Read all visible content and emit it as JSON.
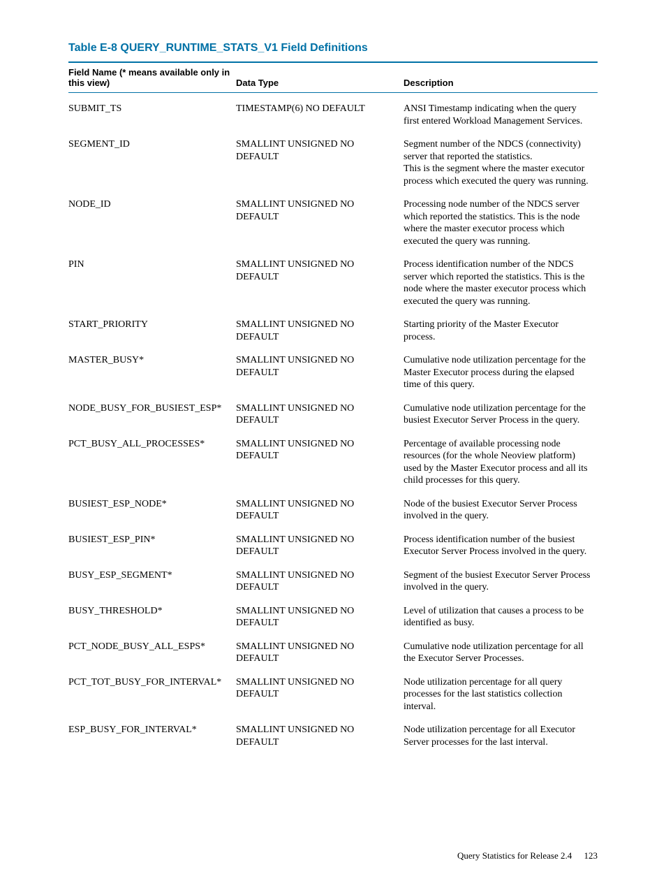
{
  "title": "Table E-8 QUERY_RUNTIME_STATS_V1 Field Definitions",
  "columns": {
    "field": "Field Name (* means available only in this view)",
    "type": "Data Type",
    "desc": "Description"
  },
  "rows": [
    {
      "field": "SUBMIT_TS",
      "type": "TIMESTAMP(6) NO DEFAULT",
      "desc": "ANSI Timestamp indicating when the query first entered Workload Management Services."
    },
    {
      "field": "SEGMENT_ID",
      "type": "SMALLINT UNSIGNED NO DEFAULT",
      "desc": "Segment number of the NDCS (connectivity) server that reported the statistics.\nThis is the segment where the master executor process which executed the query was running."
    },
    {
      "field": "NODE_ID",
      "type": "SMALLINT UNSIGNED NO DEFAULT",
      "desc": "Processing node number of the NDCS server which reported the statistics. This is the node where the master executor process which executed the query was running."
    },
    {
      "field": "PIN",
      "type": "SMALLINT UNSIGNED NO DEFAULT",
      "desc": "Process identification number of the NDCS server which reported the statistics. This is the node where the master executor process which executed the query was running."
    },
    {
      "field": "START_PRIORITY",
      "type": "SMALLINT UNSIGNED NO DEFAULT",
      "desc": "Starting priority of the Master Executor process."
    },
    {
      "field": "MASTER_BUSY*",
      "type": "SMALLINT UNSIGNED NO DEFAULT",
      "desc": "Cumulative node utilization percentage for the Master Executor process during the elapsed time of this query."
    },
    {
      "field": "NODE_BUSY_FOR_BUSIEST_ESP*",
      "type": "SMALLINT UNSIGNED NO DEFAULT",
      "desc": "Cumulative node utilization percentage for the busiest Executor Server Process in the query."
    },
    {
      "field": "PCT_BUSY_ALL_PROCESSES*",
      "type": "SMALLINT UNSIGNED NO DEFAULT",
      "desc": "Percentage of available processing node resources (for the whole Neoview platform) used by the Master Executor process and all its child processes for this query."
    },
    {
      "field": "BUSIEST_ESP_NODE*",
      "type": "SMALLINT UNSIGNED NO DEFAULT",
      "desc": "Node of the busiest Executor Server Process involved in the query."
    },
    {
      "field": "BUSIEST_ESP_PIN*",
      "type": "SMALLINT UNSIGNED NO DEFAULT",
      "desc": "Process identification number of the busiest Executor Server Process involved in the query."
    },
    {
      "field": "BUSY_ESP_SEGMENT*",
      "type": "SMALLINT UNSIGNED NO DEFAULT",
      "desc": "Segment of the busiest Executor Server Process involved in the query."
    },
    {
      "field": "BUSY_THRESHOLD*",
      "type": "SMALLINT UNSIGNED NO DEFAULT",
      "desc": "Level of utilization that causes a process to be identified as busy."
    },
    {
      "field": "PCT_NODE_BUSY_ALL_ESPS*",
      "type": "SMALLINT UNSIGNED NO DEFAULT",
      "desc": "Cumulative node utilization percentage for all the Executor Server Processes."
    },
    {
      "field": "PCT_TOT_BUSY_FOR_INTERVAL*",
      "type": "SMALLINT UNSIGNED NO DEFAULT",
      "desc": "Node utilization percentage for all query processes for the last statistics collection interval."
    },
    {
      "field": "ESP_BUSY_FOR_INTERVAL*",
      "type": "SMALLINT UNSIGNED NO DEFAULT",
      "desc": "Node utilization percentage for all Executor Server processes for the last interval."
    }
  ],
  "footer": {
    "text": "Query Statistics for Release 2.4",
    "page": "123"
  },
  "style": {
    "title_color": "#0071a6",
    "rule_color": "#0071a6",
    "body_font": "Palatino",
    "header_font": "Futura/Segoe"
  }
}
